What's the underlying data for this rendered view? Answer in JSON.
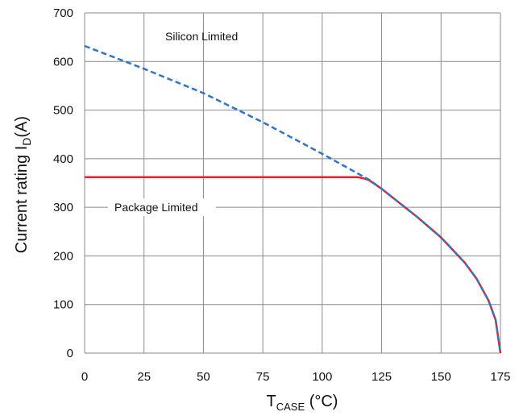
{
  "chart_data": {
    "type": "line",
    "xlabel": {
      "main": "T",
      "sub": "CASE",
      "rest": " (°C)"
    },
    "ylabel": {
      "main": "Current rating I",
      "sub": "D",
      "rest": "(A)"
    },
    "xlim": [
      0,
      175
    ],
    "ylim": [
      0,
      700
    ],
    "xticks": [
      "0",
      "25",
      "50",
      "75",
      "100",
      "125",
      "150",
      "175"
    ],
    "yticks": [
      "0",
      "100",
      "200",
      "300",
      "400",
      "500",
      "600",
      "700"
    ],
    "grid": true,
    "annotations": [
      "Silicon Limited",
      "Package Limited"
    ],
    "colors": {
      "silicon": "#2e75c9",
      "package": "#e8212a",
      "grid": "#8a8a8a"
    },
    "series": [
      {
        "id": "silicon",
        "style": "dashed",
        "x": [
          0,
          25,
          50,
          75,
          100,
          120,
          125,
          140,
          150,
          160,
          165,
          170,
          173,
          175
        ],
        "y": [
          632,
          585,
          535,
          475,
          410,
          356,
          338,
          280,
          238,
          186,
          153,
          108,
          68,
          0
        ]
      },
      {
        "id": "package",
        "style": "solid",
        "x": [
          0,
          25,
          50,
          75,
          100,
          115,
          118,
          120,
          125,
          140,
          150,
          160,
          165,
          170,
          173,
          175
        ],
        "y": [
          362,
          362,
          362,
          362,
          362,
          362,
          359,
          355,
          338,
          280,
          238,
          186,
          153,
          108,
          68,
          0
        ]
      }
    ]
  }
}
